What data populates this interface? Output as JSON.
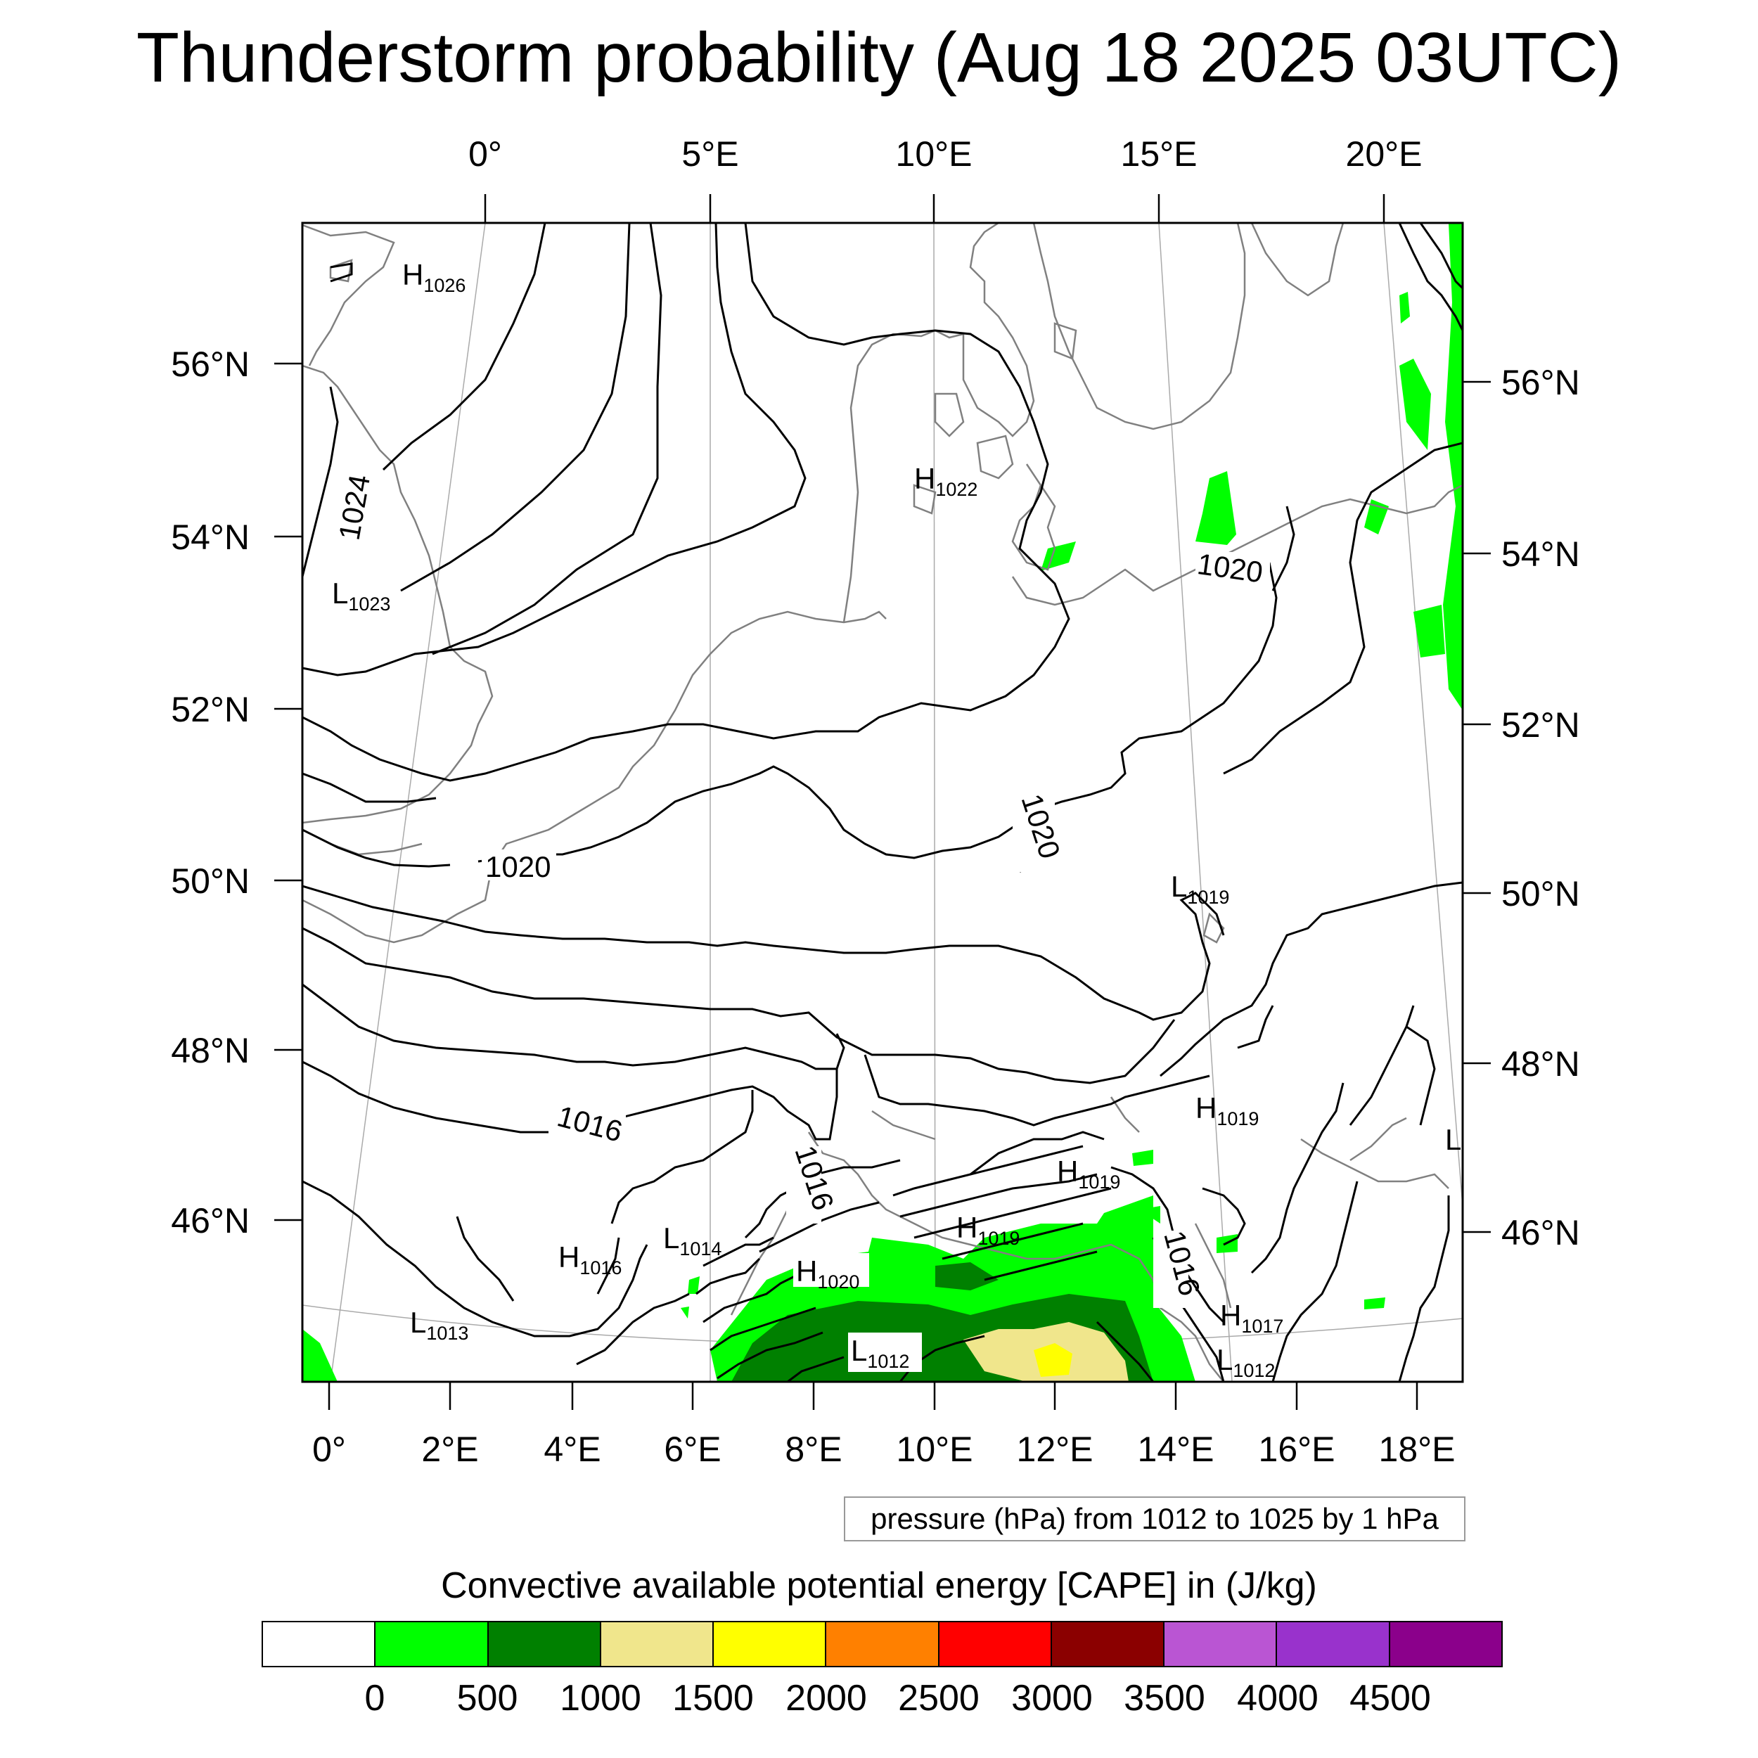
{
  "title": "Thunderstorm probability (Aug 18 2025 03UTC)",
  "map": {
    "top_axis_labels": [
      "0°",
      "5°E",
      "10°E",
      "15°E",
      "20°E"
    ],
    "bottom_axis_labels": [
      "0°",
      "2°E",
      "4°E",
      "6°E",
      "8°E",
      "10°E",
      "12°E",
      "14°E",
      "16°E",
      "18°E"
    ],
    "left_axis_labels": [
      "56°N",
      "54°N",
      "52°N",
      "50°N",
      "48°N",
      "46°N"
    ],
    "right_axis_labels": [
      "56°N",
      "54°N",
      "52°N",
      "50°N",
      "48°N",
      "46°N"
    ],
    "contour_labels": [
      "1024",
      "1020",
      "1020",
      "1020",
      "1016",
      "1016",
      "1016"
    ],
    "pressure_centers": [
      {
        "type": "H",
        "value": "1026"
      },
      {
        "type": "H",
        "value": "1022"
      },
      {
        "type": "L",
        "value": "1023"
      },
      {
        "type": "L",
        "value": "1019"
      },
      {
        "type": "H",
        "value": "1019"
      },
      {
        "type": "H",
        "value": "1019"
      },
      {
        "type": "H",
        "value": "1019"
      },
      {
        "type": "L",
        "value": "1014"
      },
      {
        "type": "H",
        "value": "1016"
      },
      {
        "type": "H",
        "value": "1020"
      },
      {
        "type": "L",
        "value": "1013"
      },
      {
        "type": "L",
        "value": "1012"
      },
      {
        "type": "H",
        "value": "1017"
      },
      {
        "type": "L",
        "value": "1012"
      },
      {
        "type": "L",
        "value": ""
      }
    ],
    "colors": {
      "isobar": "#000000",
      "coastline": "#808080",
      "cape_0_500": "#00ff00",
      "cape_500_1000": "#008000",
      "cape_1000_1500": "#f0e68c",
      "cape_1500_2000": "#ffff00"
    }
  },
  "info_box": "pressure (hPa) from 1012 to 1025 by 1 hPa",
  "colorbar": {
    "title": "Convective available potential energy [CAPE] in (J/kg)",
    "colors": [
      "#ffffff",
      "#00ff00",
      "#008000",
      "#f0e68c",
      "#ffff00",
      "#ff8000",
      "#ff0000",
      "#8b0000",
      "#ba55d3",
      "#9932cc",
      "#8b008b"
    ],
    "labels": [
      "0",
      "500",
      "1000",
      "1500",
      "2000",
      "2500",
      "3000",
      "3500",
      "4000",
      "4500"
    ]
  }
}
